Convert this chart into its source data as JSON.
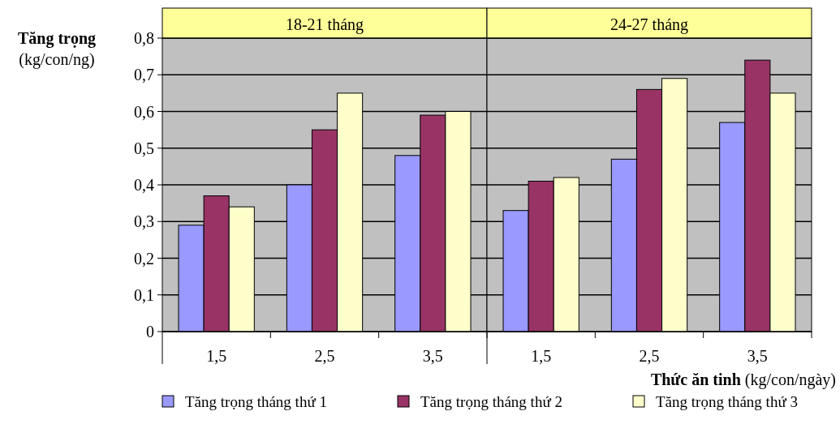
{
  "chart_data": [
    {
      "type": "bar",
      "title": "18-21 tháng",
      "ylabel": "Tăng trọng (kg/con/ng)",
      "categories": [
        "1,5",
        "2,5",
        "3,5"
      ],
      "series": [
        {
          "name": "Tăng trọng  tháng thứ 1",
          "color": "#9999ff",
          "values": [
            0.29,
            0.4,
            0.48
          ]
        },
        {
          "name": "Tăng trọng tháng thứ 2",
          "color": "#993366",
          "values": [
            0.37,
            0.55,
            0.59
          ]
        },
        {
          "name": "Tăng trọng tháng thứ 3",
          "color": "#ffffcc",
          "values": [
            0.34,
            0.65,
            0.6
          ]
        }
      ],
      "ylim": [
        0,
        0.8
      ],
      "yticks": [
        {
          "value": 0,
          "label": "0"
        },
        {
          "value": 0.1,
          "label": "0,1"
        },
        {
          "value": 0.2,
          "label": "0,2"
        },
        {
          "value": 0.3,
          "label": "0,3"
        },
        {
          "value": 0.4,
          "label": "0,4"
        },
        {
          "value": 0.5,
          "label": "0,5"
        },
        {
          "value": 0.6,
          "label": "0,6"
        },
        {
          "value": 0.7,
          "label": "0,7"
        },
        {
          "value": 0.8,
          "label": "0,8"
        }
      ],
      "grid": "y",
      "legend": "bottom"
    },
    {
      "type": "bar",
      "title": "24-27 tháng",
      "xlabel": "Thức ăn tinh (kg/con/ngày)",
      "categories": [
        "1,5",
        "2,5",
        "3,5"
      ],
      "series": [
        {
          "color": "#9999ff",
          "values": [
            0.33,
            0.47,
            0.57
          ]
        },
        {
          "color": "#993366",
          "values": [
            0.41,
            0.66,
            0.74
          ]
        },
        {
          "color": "#ffffcc",
          "values": [
            0.42,
            0.69,
            0.65
          ]
        }
      ],
      "ylim": [
        0,
        0.8
      ],
      "yticks": [
        {
          "value": 0,
          "label": null
        },
        {
          "value": 0.1,
          "label": null
        },
        {
          "value": 0.2,
          "label": null
        },
        {
          "value": 0.3,
          "label": null
        },
        {
          "value": 0.4,
          "label": null
        },
        {
          "value": 0.5,
          "label": null
        },
        {
          "value": 0.6,
          "label": null
        },
        {
          "value": 0.7,
          "label": null
        },
        {
          "value": 0.8,
          "label": null
        }
      ],
      "grid": "y",
      "tick_labels": "x"
    }
  ]
}
